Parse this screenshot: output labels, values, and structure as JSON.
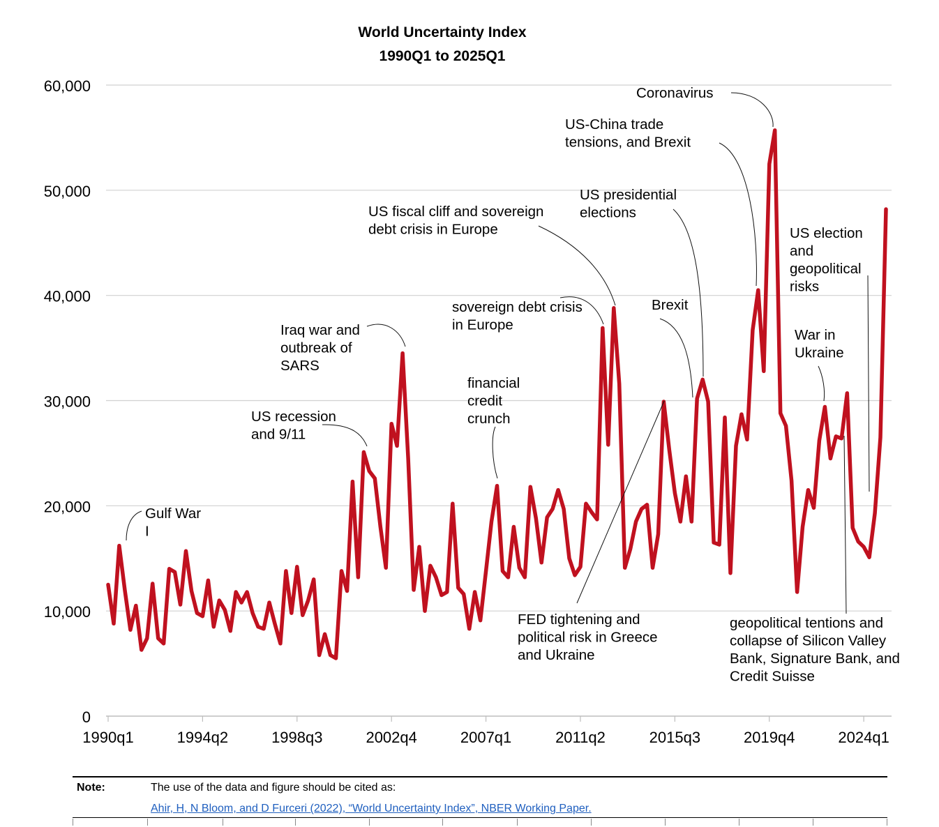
{
  "chart_data": {
    "type": "line",
    "title": "World Uncertainty Index",
    "subtitle": "1990Q1 to 2025Q1",
    "xlabel": "",
    "ylabel": "",
    "ylim": [
      0,
      60000
    ],
    "yticks": [
      0,
      10000,
      20000,
      30000,
      40000,
      50000,
      60000
    ],
    "ytick_labels": [
      "0",
      "10,000",
      "20,000",
      "30,000",
      "40,000",
      "50,000",
      "60,000"
    ],
    "xtick_labels": [
      {
        "index": 0,
        "label": "1990q1"
      },
      {
        "index": 17,
        "label": "1994q2"
      },
      {
        "index": 34,
        "label": "1998q3"
      },
      {
        "index": 51,
        "label": "2002q4"
      },
      {
        "index": 68,
        "label": "2007q1"
      },
      {
        "index": 85,
        "label": "2011q2"
      },
      {
        "index": 102,
        "label": "2015q3"
      },
      {
        "index": 119,
        "label": "2019q4"
      },
      {
        "index": 136,
        "label": "2024q1"
      }
    ],
    "grid": true,
    "series": [
      {
        "name": "World Uncertainty Index",
        "color": "#c0111f",
        "values": [
          12500,
          8800,
          16200,
          12000,
          8200,
          10500,
          6300,
          7400,
          12600,
          7400,
          6900,
          14000,
          13700,
          10600,
          15700,
          11900,
          9800,
          9500,
          12900,
          8500,
          11000,
          10100,
          8100,
          11800,
          10800,
          11800,
          9800,
          8500,
          8300,
          10800,
          8800,
          6900,
          13800,
          9800,
          14200,
          9600,
          11000,
          13000,
          5800,
          7800,
          5800,
          5500,
          13800,
          11900,
          22300,
          13200,
          25100,
          23300,
          22600,
          18000,
          14100,
          27800,
          25700,
          34500,
          24500,
          12000,
          16100,
          10000,
          14300,
          13200,
          11500,
          11800,
          20200,
          12200,
          11600,
          8300,
          11800,
          9100,
          13800,
          18500,
          21900,
          13800,
          13200,
          18000,
          14100,
          13200,
          21800,
          18800,
          14600,
          18900,
          19700,
          21500,
          19700,
          15000,
          13400,
          14200,
          20200,
          19400,
          18700,
          36900,
          25800,
          38800,
          31600,
          14100,
          15900,
          18500,
          19700,
          20100,
          14100,
          17300,
          29900,
          25300,
          21200,
          18500,
          22800,
          18500,
          30200,
          32000,
          29900,
          16500,
          16300,
          28400,
          13600,
          25700,
          28700,
          26300,
          36700,
          40500,
          32800,
          52500,
          55700,
          28800,
          27600,
          22400,
          11800,
          18000,
          21500,
          19800,
          26200,
          29400,
          24500,
          26600,
          26400,
          30700,
          17900,
          16600,
          16100,
          15100,
          19300,
          26500,
          48200
        ]
      }
    ],
    "annotations": [
      {
        "text": [
          "Gulf War",
          "I"
        ],
        "target_index": 3
      },
      {
        "text": [
          "US recession",
          "and 9/11"
        ],
        "target_index": 46
      },
      {
        "text": [
          "Iraq war and",
          "outbreak of",
          "SARS"
        ],
        "target_index": 53
      },
      {
        "text": [
          "financial",
          "credit",
          "crunch"
        ],
        "target_index": 70
      },
      {
        "text": [
          "sovereign debt crisis",
          "in Europe"
        ],
        "target_index": 89
      },
      {
        "text": [
          "US fiscal cliff and sovereign",
          "debt crisis in Europe"
        ],
        "target_index": 91
      },
      {
        "text": [
          "FED tightening and",
          "political risk in Greece",
          "and Ukraine"
        ],
        "target_index": 100
      },
      {
        "text": [
          "Brexit"
        ],
        "target_index": 105
      },
      {
        "text": [
          "US presidential",
          "elections"
        ],
        "target_index": 107
      },
      {
        "text": [
          "US-China trade",
          "tensions, and Brexit"
        ],
        "target_index": 117
      },
      {
        "text": [
          "Coronavirus"
        ],
        "target_index": 120
      },
      {
        "text": [
          "War in",
          "Ukraine"
        ],
        "target_index": 129
      },
      {
        "text": [
          "geopolitical tentions and",
          "collapse of Silicon Valley",
          "Bank, Signature Bank, and",
          "Credit Suisse"
        ],
        "target_index": 132
      },
      {
        "text": [
          "US election",
          "and",
          "geopolitical",
          "risks"
        ],
        "target_index": 138
      }
    ]
  },
  "note": {
    "label": "Note:",
    "text": "The use of the data and figure should be cited as:",
    "citation": "Ahir, H, N Bloom, and D Furceri (2022), “World Uncertainty Index”, NBER Working Paper."
  }
}
